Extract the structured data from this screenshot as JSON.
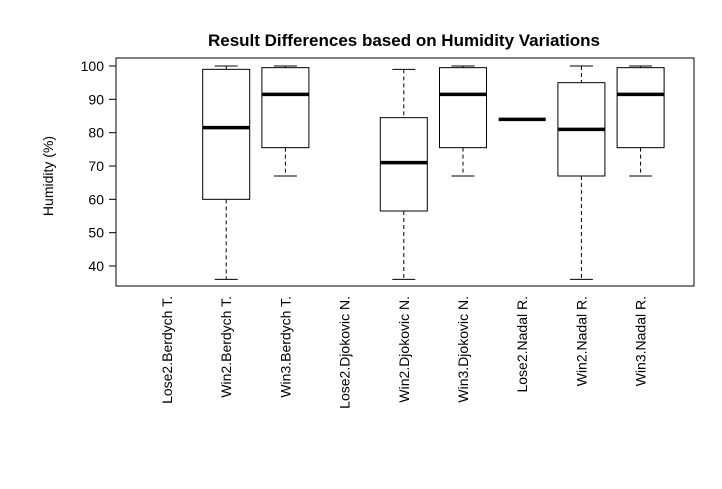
{
  "chart_data": {
    "type": "boxplot",
    "title": "Result Differences based on Humidity Variations",
    "xlabel": "",
    "ylabel": "Humidity (%)",
    "ylim": [
      33,
      103
    ],
    "yticks": [
      40,
      50,
      60,
      70,
      80,
      90,
      100
    ],
    "grid": false,
    "categories": [
      "Lose2.Berdych T.",
      "Win2.Berdych T.",
      "Win3.Berdych T.",
      "Lose2.Djokovic N.",
      "Win2.Djokovic N.",
      "Win3.Djokovic N.",
      "Lose2.Nadal R.",
      "Win2.Nadal R.",
      "Win3.Nadal R."
    ],
    "boxes": [
      null,
      {
        "min": 36,
        "q1": 60,
        "median": 81.5,
        "q3": 99,
        "max": 100
      },
      {
        "min": 67,
        "q1": 75.5,
        "median": 91.5,
        "q3": 99.5,
        "max": 100
      },
      null,
      {
        "min": 36,
        "q1": 56.5,
        "median": 71,
        "q3": 84.5,
        "max": 99
      },
      {
        "min": 67,
        "q1": 75.5,
        "median": 91.5,
        "q3": 99.5,
        "max": 100
      },
      {
        "min": 84,
        "q1": 84,
        "median": 84,
        "q3": 84,
        "max": 84
      },
      {
        "min": 36,
        "q1": 67,
        "median": 81,
        "q3": 95,
        "max": 100
      },
      {
        "min": 67,
        "q1": 75.5,
        "median": 91.5,
        "q3": 99.5,
        "max": 100
      }
    ]
  }
}
